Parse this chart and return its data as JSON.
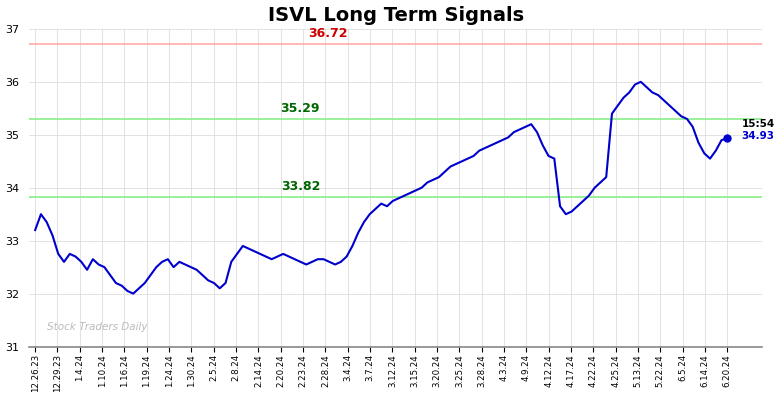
{
  "title": "ISVL Long Term Signals",
  "title_fontsize": 14,
  "background_color": "#ffffff",
  "line_color": "#0000cc",
  "line_width": 1.5,
  "ylim": [
    31,
    37
  ],
  "yticks": [
    31,
    32,
    33,
    34,
    35,
    36,
    37
  ],
  "red_hline": 36.72,
  "red_hline_color": "#ffaaaa",
  "green_hline_upper": 35.29,
  "green_hline_lower": 33.82,
  "green_hline_color": "#88ee88",
  "green_hline_linewidth": 1.2,
  "red_hline_linewidth": 1.2,
  "annotation_36_72_text": "36.72",
  "annotation_36_72_color": "#cc0000",
  "annotation_35_29_text": "35.29",
  "annotation_35_29_color": "#006600",
  "annotation_33_82_text": "33.82",
  "annotation_33_82_color": "#006600",
  "annotation_time_text": "15:54",
  "annotation_price_text": "34.93",
  "annotation_price_color": "#0000cc",
  "watermark_text": "Stock Traders Daily",
  "watermark_color": "#bbbbbb",
  "grid_color": "#dddddd",
  "x_labels": [
    "12.26.23",
    "12.29.23",
    "1.4.24",
    "1.10.24",
    "1.16.24",
    "1.19.24",
    "1.24.24",
    "1.30.24",
    "2.5.24",
    "2.8.24",
    "2.14.24",
    "2.20.24",
    "2.23.24",
    "2.28.24",
    "3.4.24",
    "3.7.24",
    "3.12.24",
    "3.15.24",
    "3.20.24",
    "3.25.24",
    "3.28.24",
    "4.3.24",
    "4.9.24",
    "4.12.24",
    "4.17.24",
    "4.22.24",
    "4.25.24",
    "5.13.24",
    "5.22.24",
    "6.5.24",
    "6.14.24",
    "6.20.24"
  ],
  "price_path": [
    33.2,
    33.5,
    33.35,
    33.1,
    32.75,
    32.6,
    32.75,
    32.7,
    32.6,
    32.45,
    32.65,
    32.55,
    32.5,
    32.35,
    32.2,
    32.15,
    32.05,
    32.0,
    32.1,
    32.2,
    32.35,
    32.5,
    32.6,
    32.65,
    32.5,
    32.6,
    32.55,
    32.5,
    32.45,
    32.35,
    32.25,
    32.2,
    32.1,
    32.2,
    32.6,
    32.75,
    32.9,
    32.85,
    32.8,
    32.75,
    32.7,
    32.65,
    32.7,
    32.75,
    32.7,
    32.65,
    32.6,
    32.55,
    32.6,
    32.65,
    32.65,
    32.6,
    32.55,
    32.6,
    32.7,
    32.9,
    33.15,
    33.35,
    33.5,
    33.6,
    33.7,
    33.65,
    33.75,
    33.8,
    33.85,
    33.9,
    33.95,
    34.0,
    34.1,
    34.15,
    34.2,
    34.3,
    34.4,
    34.45,
    34.5,
    34.55,
    34.6,
    34.7,
    34.75,
    34.8,
    34.85,
    34.9,
    34.95,
    35.05,
    35.1,
    35.15,
    35.2,
    35.05,
    34.8,
    34.6,
    34.55,
    33.65,
    33.5,
    33.55,
    33.65,
    33.75,
    33.85,
    34.0,
    34.1,
    34.2,
    35.4,
    35.55,
    35.7,
    35.8,
    35.95,
    36.0,
    35.9,
    35.8,
    35.75,
    35.65,
    35.55,
    35.45,
    35.35,
    35.3,
    35.15,
    34.85,
    34.65,
    34.55,
    34.7,
    34.9,
    34.93
  ]
}
